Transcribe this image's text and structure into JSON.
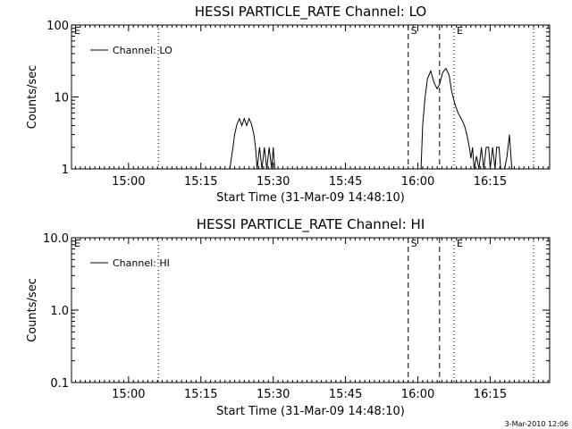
{
  "footer_timestamp": "3-Mar-2010 12:06",
  "chart_data": [
    {
      "type": "line",
      "title": "HESSI PARTICLE_RATE Channel: LO",
      "xlabel": "Start Time (31-Mar-09 14:48:10)",
      "ylabel": "Counts/sec",
      "yscale": "log",
      "xlim": [
        "14:48:10",
        "16:27:20"
      ],
      "ylim": [
        1,
        100
      ],
      "x_ticks": [
        "15:00",
        "15:15",
        "15:30",
        "15:45",
        "16:00",
        "16:15"
      ],
      "y_ticks": [
        "1",
        "10",
        "100"
      ],
      "legend": {
        "position": "top-left",
        "entries": [
          "Channel: LO"
        ]
      },
      "markers": [
        {
          "label": "E",
          "time": "14:48:10",
          "style": "dotted"
        },
        {
          "time": "15:06:10",
          "style": "dotted"
        },
        {
          "label": "S",
          "time": "15:58:00",
          "style": "dashed"
        },
        {
          "time": "16:04:30",
          "style": "dashed"
        },
        {
          "label": "E",
          "time": "16:07:30",
          "style": "dotted"
        },
        {
          "time": "16:24:00",
          "style": "dotted"
        }
      ],
      "series": [
        {
          "name": "Channel: LO",
          "segments": [
            [
              [
                "15:21:00",
                1.0
              ],
              [
                "15:21:40",
                2.0
              ],
              [
                "15:22:00",
                3.0
              ],
              [
                "15:22:30",
                4.2
              ],
              [
                "15:23:00",
                5.0
              ],
              [
                "15:23:30",
                4.0
              ],
              [
                "15:24:00",
                5.0
              ],
              [
                "15:24:30",
                4.0
              ],
              [
                "15:25:00",
                5.0
              ],
              [
                "15:25:30",
                4.2
              ],
              [
                "15:26:00",
                3.0
              ],
              [
                "15:26:20",
                2.0
              ],
              [
                "15:26:40",
                1.0
              ],
              [
                "15:27:10",
                2.0
              ],
              [
                "15:27:40",
                1.0
              ],
              [
                "15:28:10",
                2.0
              ],
              [
                "15:28:40",
                1.0
              ],
              [
                "15:29:10",
                2.0
              ],
              [
                "15:29:40",
                1.0
              ],
              [
                "15:30:00",
                2.0
              ],
              [
                "15:30:20",
                1.0
              ]
            ],
            [
              [
                "16:00:40",
                1.0
              ],
              [
                "16:01:00",
                4.0
              ],
              [
                "16:01:30",
                10.0
              ],
              [
                "16:02:00",
                18.0
              ],
              [
                "16:02:40",
                23.0
              ],
              [
                "16:03:20",
                16.0
              ],
              [
                "16:04:00",
                13.0
              ],
              [
                "16:04:30",
                15.0
              ],
              [
                "16:05:10",
                22.0
              ],
              [
                "16:05:50",
                25.0
              ],
              [
                "16:06:30",
                20.0
              ],
              [
                "16:07:00",
                12.0
              ],
              [
                "16:07:40",
                8.0
              ],
              [
                "16:08:20",
                6.0
              ],
              [
                "16:09:00",
                5.0
              ],
              [
                "16:09:40",
                4.0
              ],
              [
                "16:10:10",
                3.0
              ],
              [
                "16:10:40",
                2.0
              ],
              [
                "16:11:00",
                1.4
              ],
              [
                "16:11:20",
                2.0
              ],
              [
                "16:11:40",
                1.0
              ],
              [
                "16:12:10",
                1.5
              ],
              [
                "16:12:40",
                1.0
              ],
              [
                "16:13:10",
                2.0
              ],
              [
                "16:13:40",
                1.0
              ],
              [
                "16:14:10",
                2.0
              ],
              [
                "16:14:40",
                2.0
              ],
              [
                "16:15:00",
                1.0
              ],
              [
                "16:15:30",
                2.0
              ],
              [
                "16:16:00",
                1.0
              ],
              [
                "16:16:20",
                2.0
              ],
              [
                "16:16:50",
                2.0
              ],
              [
                "16:17:10",
                1.0
              ],
              [
                "16:18:00",
                1.0
              ],
              [
                "16:18:30",
                1.5
              ],
              [
                "16:19:00",
                3.0
              ],
              [
                "16:19:30",
                1.0
              ]
            ]
          ]
        }
      ]
    },
    {
      "type": "line",
      "title": "HESSI PARTICLE_RATE Channel: HI",
      "xlabel": "Start Time (31-Mar-09 14:48:10)",
      "ylabel": "Counts/sec",
      "yscale": "log",
      "xlim": [
        "14:48:10",
        "16:27:20"
      ],
      "ylim": [
        0.1,
        10.0
      ],
      "x_ticks": [
        "15:00",
        "15:15",
        "15:30",
        "15:45",
        "16:00",
        "16:15"
      ],
      "y_ticks": [
        "0.1",
        "1.0",
        "10.0"
      ],
      "legend": {
        "position": "top-left",
        "entries": [
          "Channel: HI"
        ]
      },
      "markers": [
        {
          "label": "E",
          "time": "14:48:10",
          "style": "dotted"
        },
        {
          "time": "15:06:10",
          "style": "dotted"
        },
        {
          "label": "S",
          "time": "15:58:00",
          "style": "dashed"
        },
        {
          "time": "16:04:30",
          "style": "dashed"
        },
        {
          "label": "E",
          "time": "16:07:30",
          "style": "dotted"
        },
        {
          "time": "16:24:00",
          "style": "dotted"
        }
      ],
      "series": [
        {
          "name": "Channel: HI",
          "segments": []
        }
      ]
    }
  ]
}
